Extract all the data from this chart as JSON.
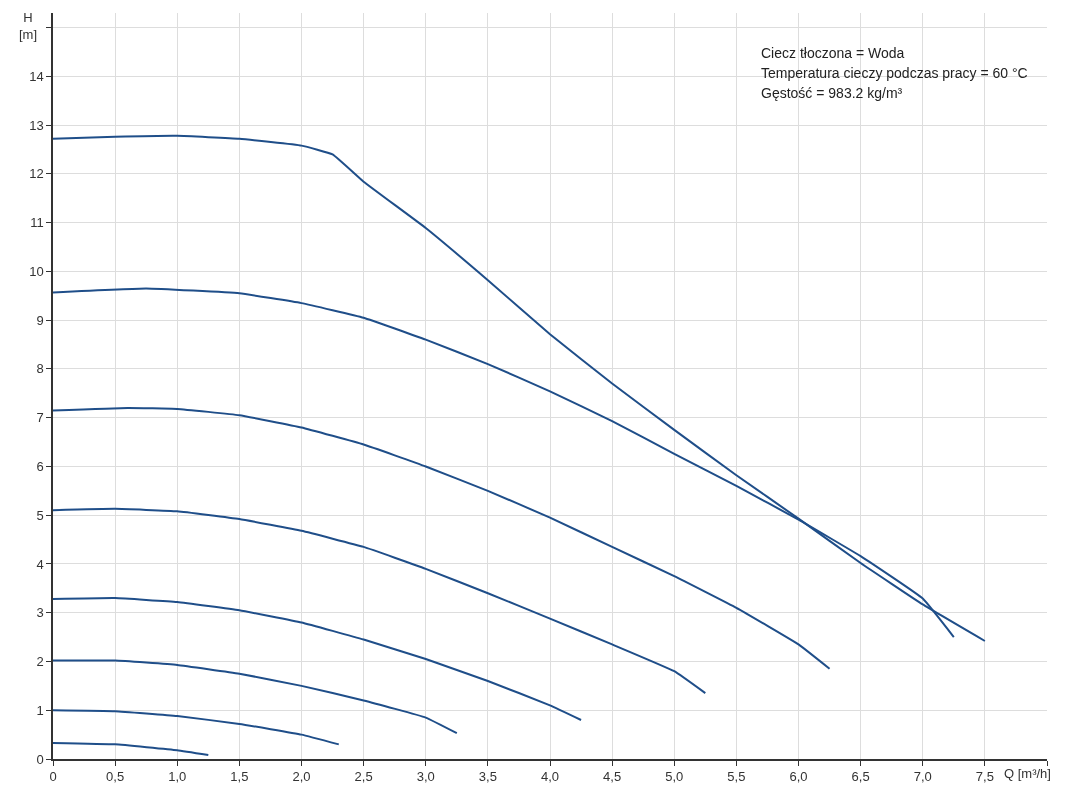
{
  "chart_data": {
    "type": "line",
    "xlabel": "Q [m³/h]",
    "ylabel": "H\n[m]",
    "annotations": [
      "Ciecz tłoczona = Woda",
      "Temperatura cieczy podczas pracy = 60 °C",
      "Gęstość = 983.2 kg/m³"
    ],
    "series": [
      {
        "color": "#1f4e89",
        "x": [
          0,
          0.5,
          1.0,
          1.5,
          2.0,
          2.25,
          2.5,
          3.0,
          3.5,
          4.0,
          4.5,
          5.0,
          5.5,
          6.0,
          6.5,
          7.0,
          7.5
        ],
        "values": [
          12.72,
          12.76,
          12.78,
          12.72,
          12.58,
          12.4,
          11.84,
          10.89,
          9.82,
          8.71,
          7.7,
          6.75,
          5.82,
          4.93,
          4.02,
          3.17,
          2.42
        ]
      },
      {
        "color": "#1f4e89",
        "x": [
          0,
          0.75,
          1.5,
          2.0,
          2.5,
          3.0,
          3.5,
          4.0,
          4.5,
          5.0,
          5.5,
          6.0,
          6.5,
          7.0,
          7.25
        ],
        "values": [
          9.57,
          9.65,
          9.55,
          9.35,
          9.05,
          8.6,
          8.1,
          7.54,
          6.93,
          6.26,
          5.6,
          4.91,
          4.16,
          3.29,
          2.5
        ]
      },
      {
        "color": "#1f4e89",
        "x": [
          0,
          0.6,
          1.0,
          1.5,
          2.0,
          2.5,
          3.0,
          3.5,
          4.0,
          4.5,
          5.0,
          5.5,
          6.0,
          6.25
        ],
        "values": [
          7.15,
          7.2,
          7.18,
          7.05,
          6.8,
          6.45,
          6.0,
          5.5,
          4.95,
          4.35,
          3.75,
          3.1,
          2.35,
          1.85
        ]
      },
      {
        "color": "#1f4e89",
        "x": [
          0,
          0.5,
          1.0,
          1.5,
          2.0,
          2.5,
          3.0,
          3.5,
          4.0,
          4.5,
          5.0,
          5.25
        ],
        "values": [
          5.1,
          5.13,
          5.08,
          4.92,
          4.68,
          4.35,
          3.9,
          3.4,
          2.88,
          2.35,
          1.8,
          1.35
        ]
      },
      {
        "color": "#1f4e89",
        "x": [
          0,
          0.5,
          1.0,
          1.5,
          2.0,
          2.5,
          3.0,
          3.5,
          4.0,
          4.25
        ],
        "values": [
          3.28,
          3.3,
          3.22,
          3.05,
          2.8,
          2.45,
          2.05,
          1.6,
          1.1,
          0.8
        ]
      },
      {
        "color": "#1f4e89",
        "x": [
          0,
          0.5,
          1.0,
          1.5,
          2.0,
          2.5,
          3.0,
          3.25
        ],
        "values": [
          2.02,
          2.02,
          1.93,
          1.75,
          1.5,
          1.2,
          0.85,
          0.53
        ]
      },
      {
        "color": "#1f4e89",
        "x": [
          0,
          0.5,
          1.0,
          1.5,
          2.0,
          2.3
        ],
        "values": [
          1.0,
          0.98,
          0.88,
          0.72,
          0.5,
          0.3
        ]
      },
      {
        "color": "#1f4e89",
        "x": [
          0,
          0.5,
          1.0,
          1.25
        ],
        "values": [
          0.33,
          0.3,
          0.18,
          0.08
        ]
      }
    ],
    "xlim": [
      0,
      8.0
    ],
    "xticks": [
      0,
      {
        "value": 0.5,
        "label": "0,5"
      },
      {
        "value": 1.0,
        "label": "1,0"
      },
      {
        "value": 1.5,
        "label": "1,5"
      },
      {
        "value": 2.0,
        "label": "2,0"
      },
      {
        "value": 2.5,
        "label": "2,5"
      },
      {
        "value": 3.0,
        "label": "3,0"
      },
      {
        "value": 3.5,
        "label": "3,5"
      },
      {
        "value": 4.0,
        "label": "4,0"
      },
      {
        "value": 4.5,
        "label": "4,5"
      },
      {
        "value": 5.0,
        "label": "5,0"
      },
      {
        "value": 5.5,
        "label": "5,5"
      },
      {
        "value": 6.0,
        "label": "6,0"
      },
      {
        "value": 6.5,
        "label": "6,5"
      },
      {
        "value": 7.0,
        "label": "7,0"
      },
      {
        "value": 7.5,
        "label": "7,5"
      },
      {
        "value": 8.0,
        "label": null
      }
    ],
    "ylim": [
      0,
      15.3
    ],
    "yticks": [
      0,
      1,
      2,
      3,
      4,
      5,
      6,
      7,
      8,
      9,
      10,
      11,
      12,
      13,
      14,
      {
        "value": 15,
        "label": null
      }
    ],
    "grid": true,
    "marker": "none",
    "line_style": "solid"
  }
}
